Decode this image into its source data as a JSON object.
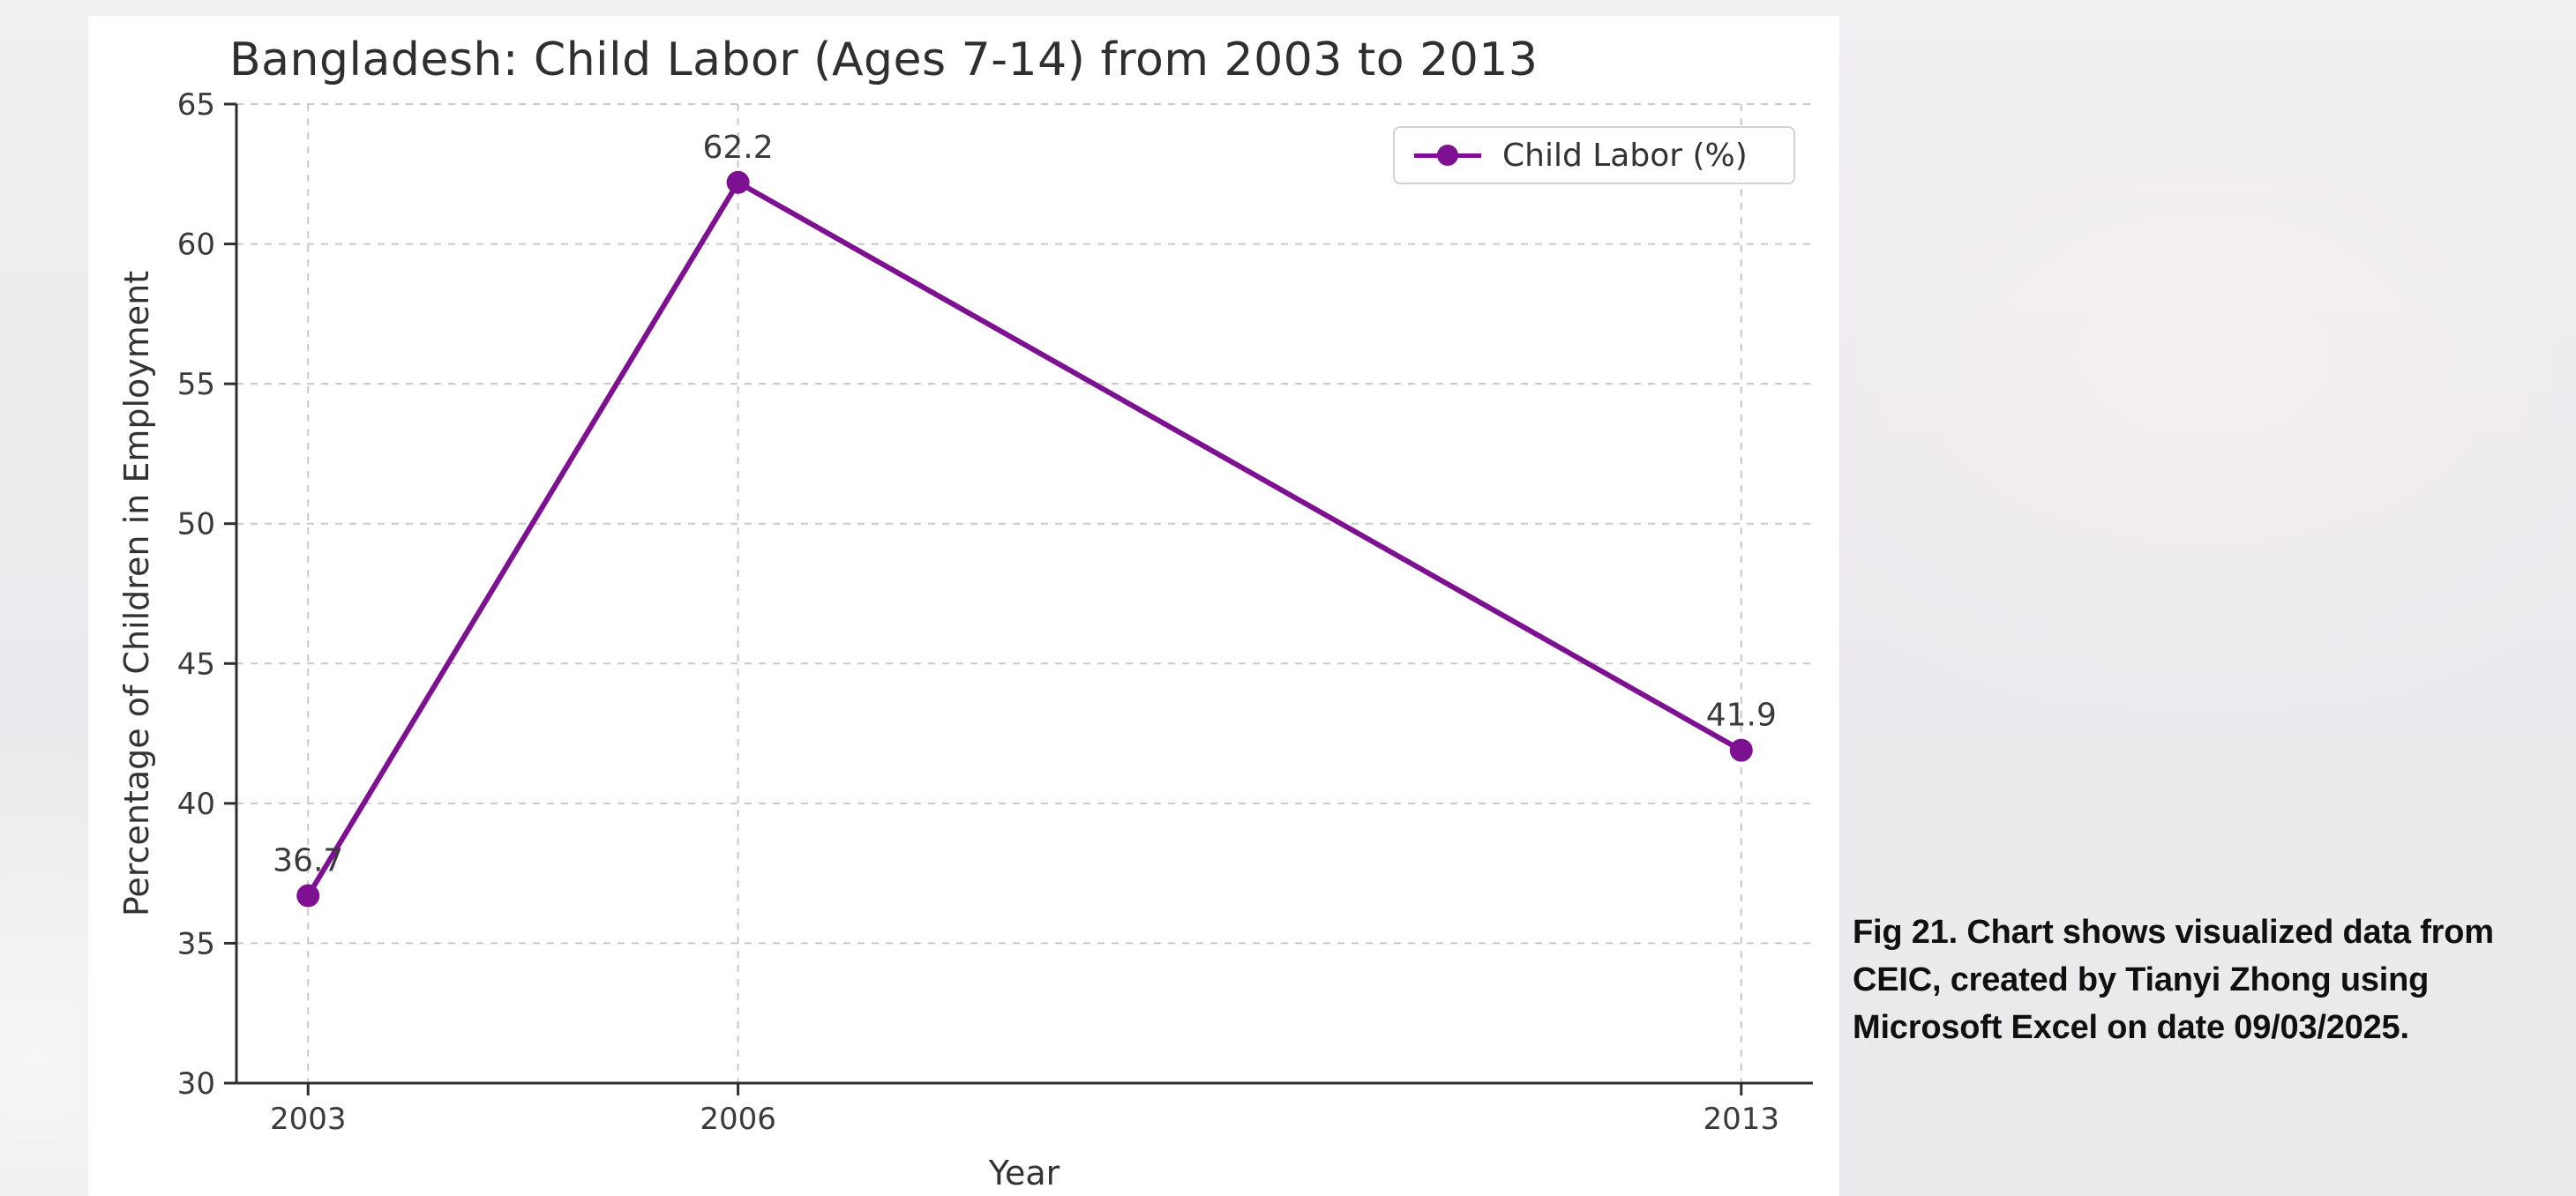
{
  "colors": {
    "line": "#7E1191",
    "grid": "#C9C9C9",
    "spine": "#2E2E2E",
    "tick_label": "#3A3A3A",
    "title": "#2F2F2F",
    "figure_background": "#FFFFFF",
    "page_background": "#ECEBEE",
    "caption_text": "#101010"
  },
  "chart_data": {
    "type": "line",
    "title": "Bangladesh: Child Labor (Ages 7-14) from 2003 to 2013",
    "xlabel": "Year",
    "ylabel": "Percentage of Children in Employment",
    "x": [
      2003,
      2006,
      2013
    ],
    "series": [
      {
        "name": "Child Labor (%)",
        "values": [
          36.7,
          62.2,
          41.9
        ]
      }
    ],
    "point_labels": [
      "36.7",
      "62.2",
      "41.9"
    ],
    "xticks": [
      2003,
      2006,
      2013
    ],
    "yticks": [
      30,
      35,
      40,
      45,
      50,
      55,
      60,
      65
    ],
    "xlim": [
      2002.5,
      2013.5
    ],
    "ylim": [
      30,
      65
    ],
    "grid": true,
    "grid_style": "dashed",
    "marker": "circle",
    "line_color": "#7E1191",
    "legend": {
      "position": "upper right",
      "entries": [
        "Child Labor (%)"
      ]
    }
  },
  "caption": {
    "text": "Fig 21. Chart shows visualized data from CEIC, created by Tianyi Zhong using Microsoft Excel on date 09/03/2025."
  }
}
